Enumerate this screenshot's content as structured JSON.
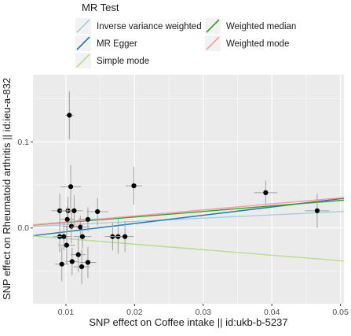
{
  "chart_data": {
    "type": "scatter",
    "title": "",
    "xlabel": "SNP effect on Coffee intake || id:ukb-b-5237",
    "ylabel": "SNP effect on Rheumatoid arthritis || id:ieu-a-832",
    "xlim": [
      0.0052,
      0.0505
    ],
    "ylim": [
      -0.088,
      0.178
    ],
    "xticks": [
      0.01,
      0.02,
      0.03,
      0.04,
      0.05
    ],
    "xtick_labels": [
      "0.01",
      "0.02",
      "0.03",
      "0.04",
      "0.05"
    ],
    "yticks": [
      0.0,
      0.1
    ],
    "ytick_labels": [
      "0.0",
      "0.1"
    ],
    "grid": true,
    "legend": {
      "title": "MR Test",
      "placement": "top",
      "items": [
        {
          "label": "Inverse variance weighted",
          "color": "#A6CEE3"
        },
        {
          "label": "Weighted median",
          "color": "#33A02C"
        },
        {
          "label": "MR Egger",
          "color": "#1F78B4"
        },
        {
          "label": "Weighted mode",
          "color": "#FB9A99"
        },
        {
          "label": "Simple mode",
          "color": "#B2DF8A"
        }
      ]
    },
    "points": [
      {
        "x": 0.0105,
        "y": 0.131,
        "xerr": 0.0006,
        "yerr": 0.028
      },
      {
        "x": 0.0107,
        "y": 0.048,
        "xerr": 0.0015,
        "yerr": 0.025
      },
      {
        "x": 0.0199,
        "y": 0.049,
        "xerr": 0.0012,
        "yerr": 0.022
      },
      {
        "x": 0.0391,
        "y": 0.041,
        "xerr": 0.0017,
        "yerr": 0.014
      },
      {
        "x": 0.0466,
        "y": 0.02,
        "xerr": 0.0018,
        "yerr": 0.02
      },
      {
        "x": 0.0091,
        "y": 0.02,
        "xerr": 0.0012,
        "yerr": 0.02
      },
      {
        "x": 0.0103,
        "y": 0.02,
        "xerr": 0.0012,
        "yerr": 0.016
      },
      {
        "x": 0.0112,
        "y": 0.02,
        "xerr": 0.0013,
        "yerr": 0.018
      },
      {
        "x": 0.0146,
        "y": 0.019,
        "xerr": 0.0016,
        "yerr": 0.016
      },
      {
        "x": 0.0102,
        "y": 0.01,
        "xerr": 0.001,
        "yerr": 0.015
      },
      {
        "x": 0.0132,
        "y": 0.01,
        "xerr": 0.0014,
        "yerr": 0.014
      },
      {
        "x": 0.0108,
        "y": 0.002,
        "xerr": 0.0013,
        "yerr": 0.02
      },
      {
        "x": 0.0121,
        "y": 0.001,
        "xerr": 0.0014,
        "yerr": 0.013
      },
      {
        "x": 0.0091,
        "y": -0.01,
        "xerr": 0.001,
        "yerr": 0.018
      },
      {
        "x": 0.0097,
        "y": -0.01,
        "xerr": 0.001,
        "yerr": 0.016
      },
      {
        "x": 0.0124,
        "y": -0.01,
        "xerr": 0.0013,
        "yerr": 0.014
      },
      {
        "x": 0.0168,
        "y": -0.01,
        "xerr": 0.0011,
        "yerr": 0.016
      },
      {
        "x": 0.0176,
        "y": -0.01,
        "xerr": 0.0014,
        "yerr": 0.02
      },
      {
        "x": 0.0186,
        "y": -0.01,
        "xerr": 0.0013,
        "yerr": 0.018
      },
      {
        "x": 0.0101,
        "y": -0.02,
        "xerr": 0.0012,
        "yerr": 0.022
      },
      {
        "x": 0.0118,
        "y": -0.031,
        "xerr": 0.0011,
        "yerr": 0.02
      },
      {
        "x": 0.0109,
        "y": -0.039,
        "xerr": 0.001,
        "yerr": 0.016
      },
      {
        "x": 0.0132,
        "y": -0.04,
        "xerr": 0.0012,
        "yerr": 0.018
      },
      {
        "x": 0.0094,
        "y": -0.042,
        "xerr": 0.001,
        "yerr": 0.02
      },
      {
        "x": 0.0123,
        "y": -0.045,
        "xerr": 0.0012,
        "yerr": 0.02
      }
    ],
    "lines": [
      {
        "method": "Inverse variance weighted",
        "color": "#A6CEE3",
        "intercept": 0.0,
        "slope": 0.38
      },
      {
        "method": "MR Egger",
        "color": "#1F78B4",
        "intercept": -0.014,
        "slope": 0.96
      },
      {
        "method": "Simple mode",
        "color": "#B2DF8A",
        "intercept": -0.006,
        "slope": -0.64
      },
      {
        "method": "Weighted median",
        "color": "#33A02C",
        "intercept": 0.0,
        "slope": 0.64
      },
      {
        "method": "Weighted mode",
        "color": "#FB9A99",
        "intercept": 0.0,
        "slope": 0.7
      }
    ]
  }
}
